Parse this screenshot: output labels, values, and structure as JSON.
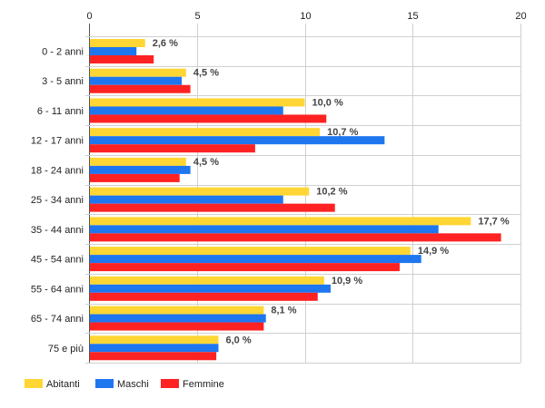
{
  "chart_data": {
    "type": "bar",
    "orientation": "horizontal",
    "categories": [
      "0 - 2 anni",
      "3 - 5 anni",
      "6 - 11 anni",
      "12 - 17 anni",
      "18 - 24 anni",
      "25 - 34 anni",
      "35 - 44 anni",
      "45 - 54 anni",
      "55 - 64 anni",
      "65 - 74 anni",
      "75 e più"
    ],
    "series": [
      {
        "name": "Abitanti",
        "color": "#FFD633",
        "values": [
          2.6,
          4.5,
          10.0,
          10.7,
          4.5,
          10.2,
          17.7,
          14.9,
          10.9,
          8.1,
          6.0
        ]
      },
      {
        "name": "Maschi",
        "color": "#1F77F0",
        "values": [
          2.2,
          4.3,
          9.0,
          13.7,
          4.7,
          9.0,
          16.2,
          15.4,
          11.2,
          8.2,
          6.0
        ]
      },
      {
        "name": "Femmine",
        "color": "#FF2222",
        "values": [
          3.0,
          4.7,
          11.0,
          7.7,
          4.2,
          11.4,
          19.1,
          14.4,
          10.6,
          8.1,
          5.9
        ]
      }
    ],
    "data_labels": [
      "2,6 %",
      "4,5 %",
      "10,0 %",
      "10,7 %",
      "4,5 %",
      "10,2 %",
      "17,7 %",
      "14,9 %",
      "10,9 %",
      "8,1 %",
      "6,0 %"
    ],
    "xlim": [
      0,
      20
    ],
    "xticks": [
      "0",
      "5",
      "10",
      "15",
      "20"
    ],
    "xtick_values": [
      0,
      5,
      10,
      15,
      20
    ],
    "axis_position": "top",
    "grid": true,
    "legend_position": "bottom-left"
  }
}
